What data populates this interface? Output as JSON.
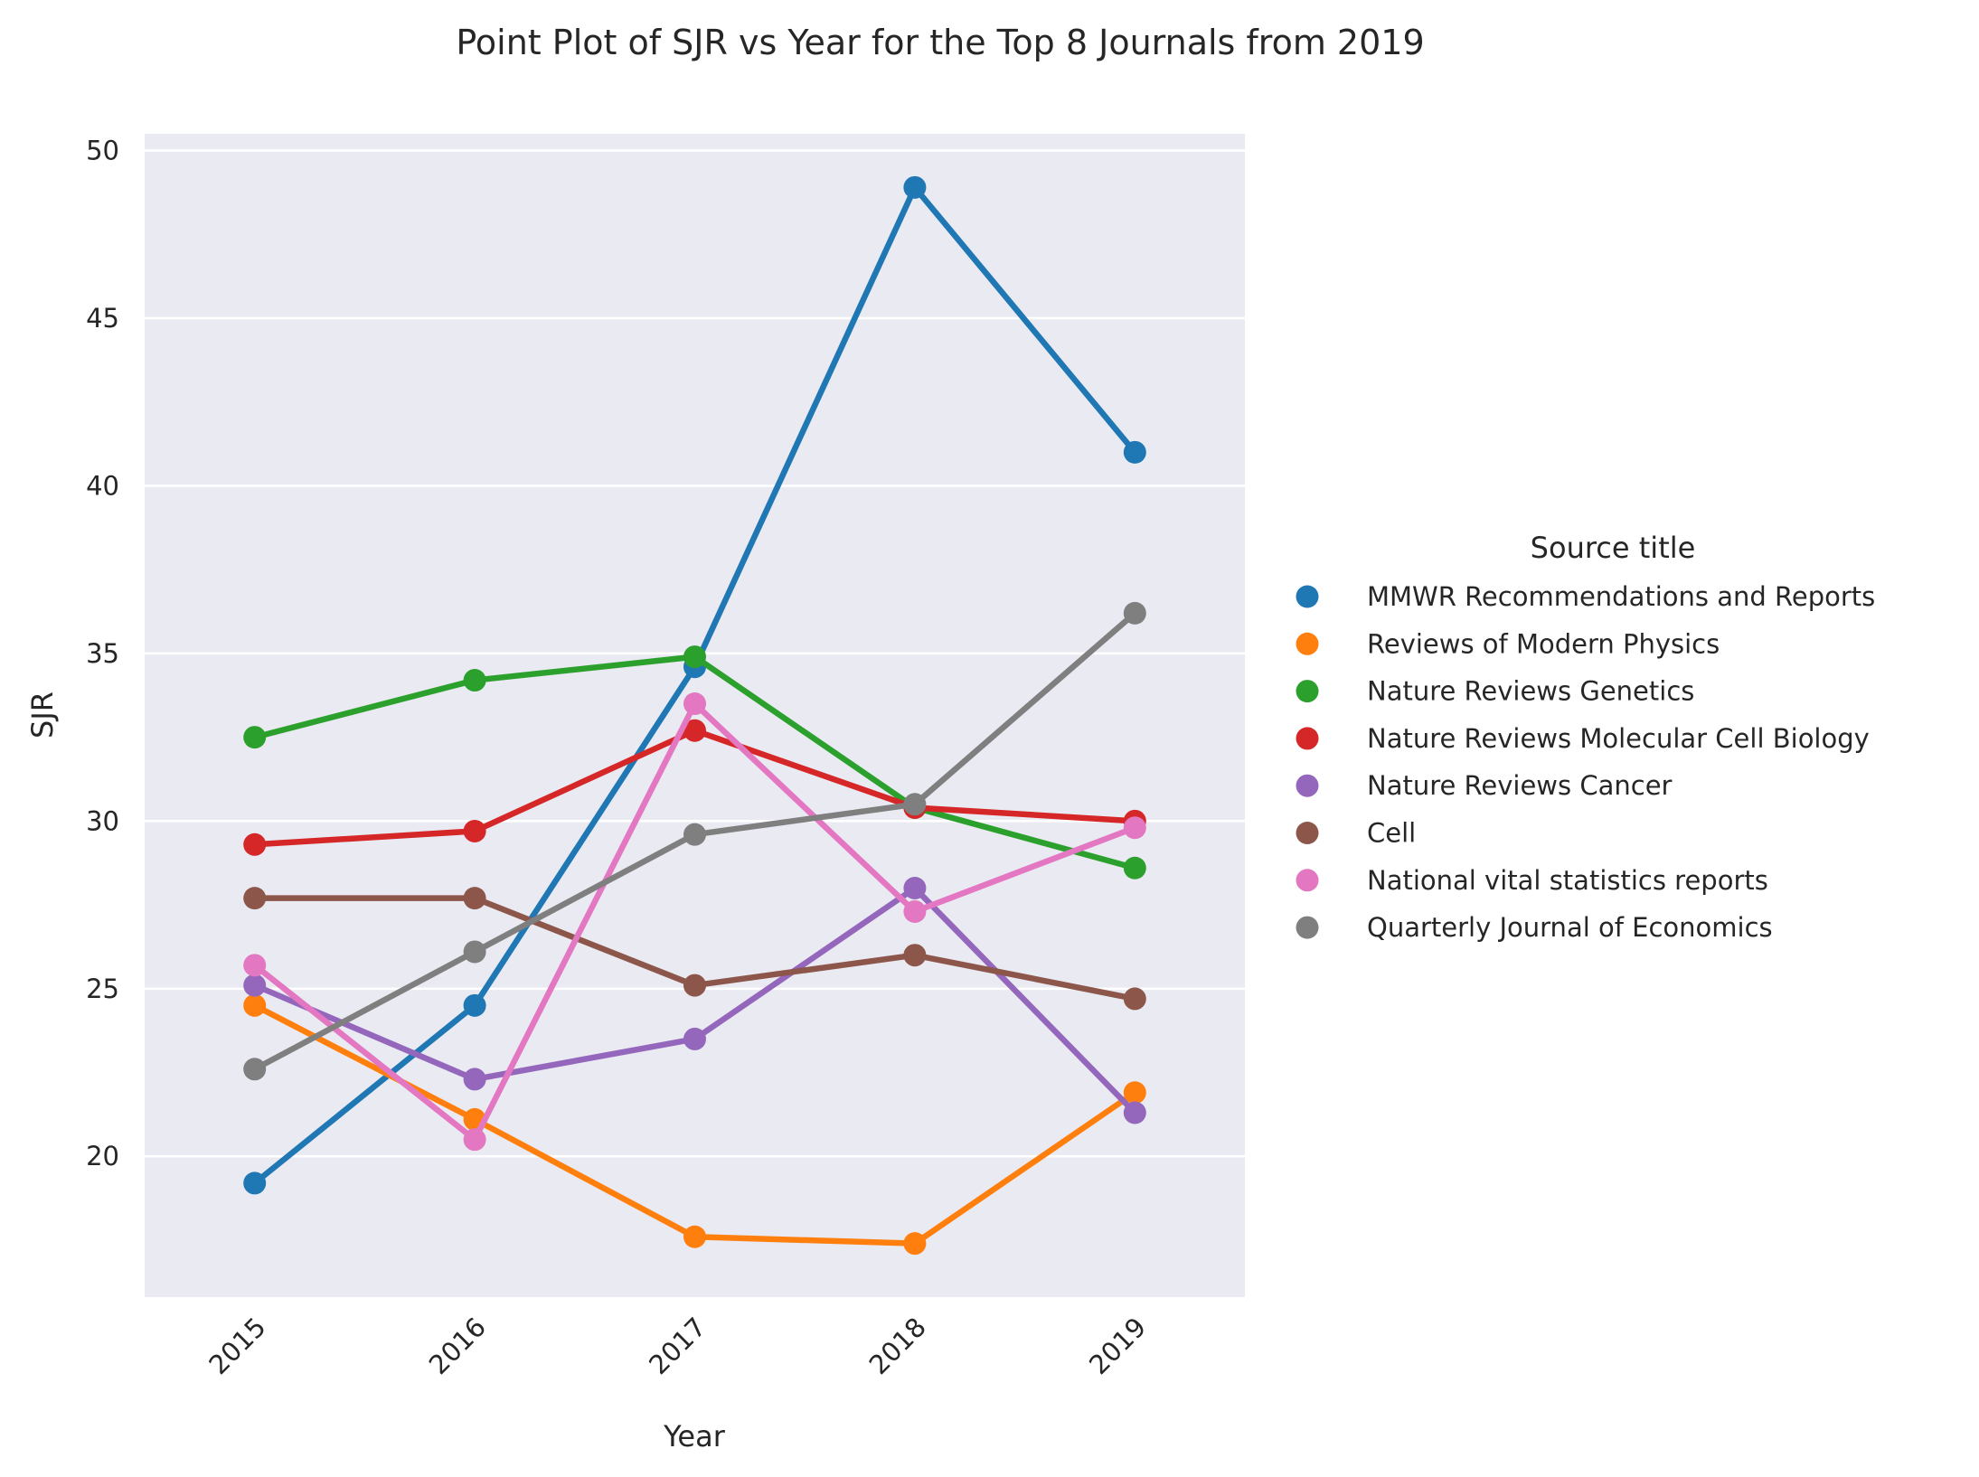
{
  "chart_data": {
    "type": "line",
    "title": "Point Plot of SJR vs Year for the Top 8 Journals from 2019",
    "xlabel": "Year",
    "ylabel": "SJR",
    "categories": [
      "2015",
      "2016",
      "2017",
      "2018",
      "2019"
    ],
    "ylim": [
      15.8,
      50.5
    ],
    "yticks": [
      20,
      25,
      30,
      35,
      40,
      45,
      50
    ],
    "grid": true,
    "legend": {
      "title": "Source title",
      "placement": "right"
    },
    "series": [
      {
        "name": "MMWR Recommendations and Reports",
        "color": "#1f77b4",
        "values": [
          19.2,
          24.5,
          34.6,
          48.9,
          41.0
        ]
      },
      {
        "name": "Reviews of Modern Physics",
        "color": "#ff7f0e",
        "values": [
          24.5,
          21.1,
          17.6,
          17.4,
          21.9
        ]
      },
      {
        "name": "Nature Reviews Genetics",
        "color": "#2ca02c",
        "values": [
          32.5,
          34.2,
          34.9,
          30.4,
          28.6
        ]
      },
      {
        "name": "Nature Reviews Molecular Cell Biology",
        "color": "#d62728",
        "values": [
          29.3,
          29.7,
          32.7,
          30.4,
          30.0
        ]
      },
      {
        "name": "Nature Reviews Cancer",
        "color": "#9467bd",
        "values": [
          25.1,
          22.3,
          23.5,
          28.0,
          21.3
        ]
      },
      {
        "name": "Cell",
        "color": "#8c564b",
        "values": [
          27.7,
          27.7,
          25.1,
          26.0,
          24.7
        ]
      },
      {
        "name": "National vital statistics reports",
        "color": "#e377c2",
        "values": [
          25.7,
          20.5,
          33.5,
          27.3,
          29.8
        ]
      },
      {
        "name": "Quarterly Journal of Economics",
        "color": "#7f7f7f",
        "values": [
          22.6,
          26.1,
          29.6,
          30.5,
          36.2
        ]
      }
    ]
  }
}
